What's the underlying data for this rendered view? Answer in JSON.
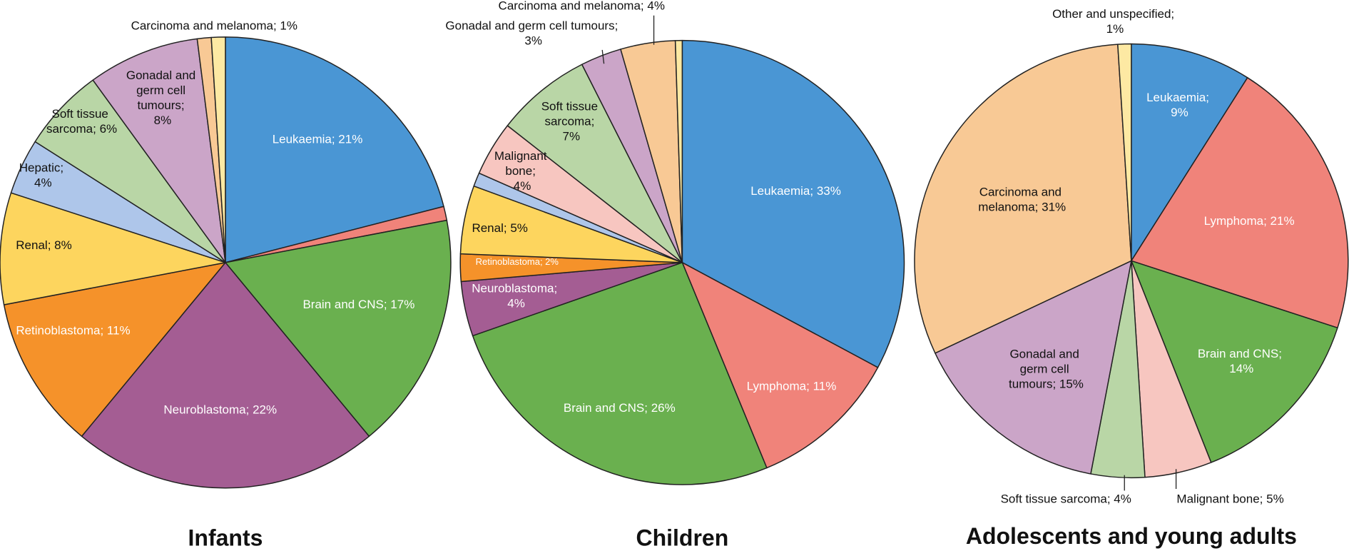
{
  "chart_data": [
    {
      "type": "pie",
      "title": "Infants",
      "categories": [
        "Leukaemia; 21%",
        null,
        "Brain and CNS; 17%",
        "Neuroblastoma; 22%",
        "Retinoblastoma; 11%",
        "Renal; 8%",
        "Hepatic; 4%",
        "Soft tissue sarcoma; 6%",
        "Gonadal and germ cell tumours; 8%",
        "Carcinoma and melanoma; 1%",
        null
      ],
      "values": [
        21,
        1,
        17,
        22,
        11,
        8,
        4,
        6,
        8,
        1,
        1
      ],
      "colors": [
        "#4a96d4",
        "#f0837a",
        "#6ab04f",
        "#a45d93",
        "#f5922a",
        "#fdd55e",
        "#aec6ea",
        "#b9d6a6",
        "#cba5c8",
        "#f8c995",
        "#fde9a3"
      ]
    },
    {
      "type": "pie",
      "title": "Children",
      "categories": [
        "Leukaemia; 33%",
        "Lymphoma; 11%",
        "Brain and CNS; 26%",
        "Neuroblastoma; 4%",
        "Retinoblastoma; 2%",
        "Renal; 5%",
        null,
        "Malignant bone; 4%",
        "Soft tissue sarcoma; 7%",
        "Gonadal and germ cell tumours; 3%",
        "Carcinoma and melanoma; 4%",
        null
      ],
      "values": [
        33,
        11,
        26,
        4,
        2,
        5,
        1,
        4,
        7,
        3,
        4,
        0.5
      ],
      "colors": [
        "#4a96d4",
        "#f0837a",
        "#6ab04f",
        "#a45d93",
        "#f5922a",
        "#fdd55e",
        "#aec6ea",
        "#f7c6c0",
        "#b9d6a6",
        "#cba5c8",
        "#f8c995",
        "#fde9a3"
      ]
    },
    {
      "type": "pie",
      "title": "Adolescents and young adults",
      "categories": [
        "Leukaemia; 9%",
        "Lymphoma; 21%",
        "Brain and CNS; 14%",
        "Malignant bone; 5%",
        "Soft tissue sarcoma; 4%",
        "Gonadal and germ cell tumours; 15%",
        "Carcinoma and melanoma; 31%",
        "Other and unspecified; 1%"
      ],
      "values": [
        9,
        21,
        14,
        5,
        4,
        15,
        31,
        1
      ],
      "colors": [
        "#4a96d4",
        "#f0837a",
        "#6ab04f",
        "#f7c6c0",
        "#b9d6a6",
        "#cba5c8",
        "#f8c995",
        "#fde9a3"
      ]
    }
  ]
}
